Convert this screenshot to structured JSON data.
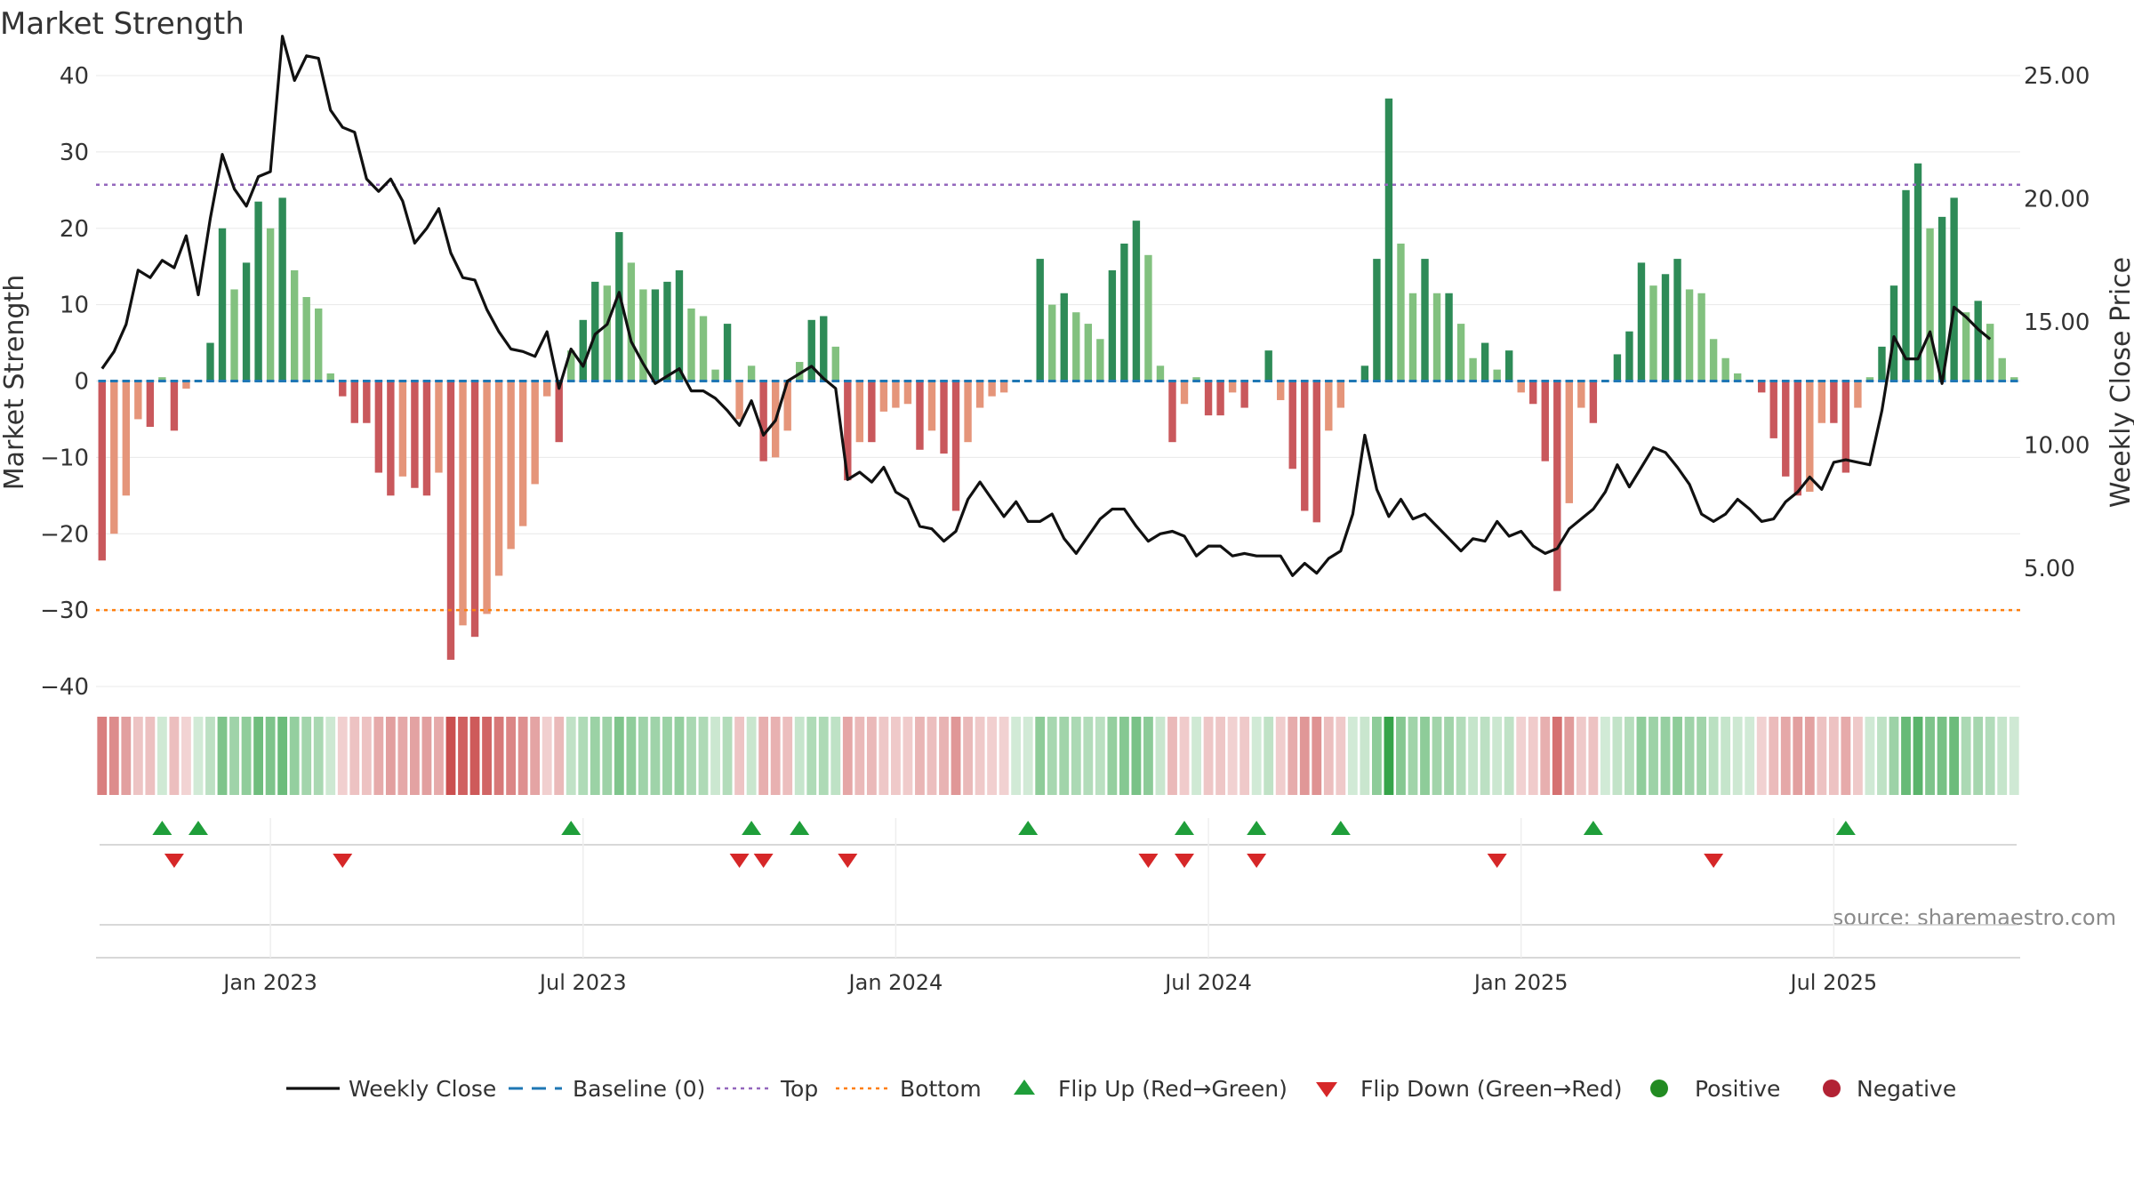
{
  "colors": {
    "green_strong": "#2e8b57",
    "green_light": "#82c17f",
    "red_strong": "#c9585c",
    "red_light": "#e5957a",
    "close_line": "#111111",
    "baseline": "#1f77b4",
    "top_line": "#9467bd",
    "bottom_line": "#ff7f0e",
    "flip_up": "#1f9e3a",
    "flip_down": "#d62728",
    "positive": "#228b22",
    "negative": "#b22234",
    "grid": "#e8e8e8"
  },
  "chart_data": {
    "type": "bar",
    "title": "Market Strength",
    "ylabel": "Market Strength",
    "y2label": "Weekly Close Price",
    "ylim": [
      -40,
      40
    ],
    "y2lim": [
      0.2,
      25
    ],
    "yticks": [
      40,
      30,
      20,
      10,
      0,
      -10,
      -20,
      -30,
      -40
    ],
    "yticklabels": [
      "40",
      "30",
      "20",
      "10",
      "0",
      "−10",
      "−20",
      "−30",
      "−40"
    ],
    "y2ticks": [
      25,
      20,
      15,
      10,
      5
    ],
    "y2ticklabels": [
      "25.00",
      "20.00",
      "15.00",
      "10.00",
      "5.00"
    ],
    "top_level": 25.7,
    "bottom_level": -30,
    "grid": true,
    "legend_position": "bottom",
    "xticks": [
      "Jan 2023",
      "Jul 2023",
      "Jan 2024",
      "Jul 2024",
      "Jan 2025",
      "Jul 2025"
    ],
    "xtick_index": [
      14,
      40,
      66,
      92,
      118,
      144
    ],
    "source": "source: sharemaestro.com",
    "strength": [
      -23.5,
      -20,
      -15,
      -5,
      -6,
      0.5,
      -6.5,
      -1,
      0,
      5,
      20,
      12,
      15.5,
      23.5,
      20,
      24,
      14.5,
      11,
      9.5,
      1,
      -2,
      -5.5,
      -5.5,
      -12,
      -15,
      -12.5,
      -14,
      -15,
      -12,
      -36.5,
      -32,
      -33.5,
      -30.5,
      -25.5,
      -22,
      -19,
      -13.5,
      -2,
      -8,
      4,
      8,
      13,
      12.5,
      19.5,
      15.5,
      12,
      12,
      13,
      14.5,
      9.5,
      8.5,
      1.5,
      7.5,
      -5,
      2,
      -10.5,
      -10,
      -6.5,
      2.5,
      8,
      8.5,
      4.5,
      -13,
      -8,
      -8,
      -4,
      -3.5,
      -3,
      -9,
      -6.5,
      -9.5,
      -17,
      -8,
      -3.5,
      -2,
      -1.5,
      0,
      0,
      16,
      10,
      11.5,
      9,
      7.5,
      5.5,
      14.5,
      18,
      21,
      16.5,
      2,
      -8,
      -3,
      0.5,
      -4.5,
      -4.5,
      -1.5,
      -3.5,
      0,
      4,
      -2.5,
      -11.5,
      -17,
      -18.5,
      -6.5,
      -3.5,
      0,
      2,
      16,
      37,
      18,
      11.5,
      16,
      11.5,
      11.5,
      7.5,
      3,
      5,
      1.5,
      4,
      -1.5,
      -3,
      -10.5,
      -27.5,
      -16,
      -3.5,
      -5.5,
      0,
      3.5,
      6.5,
      15.5,
      12.5,
      14,
      16,
      12,
      11.5,
      5.5,
      3,
      1,
      0,
      -1.5,
      -7.5,
      -12.5,
      -15,
      -14.5,
      -5.5,
      -5.5,
      -12,
      -3.5,
      0.5,
      4.5,
      12.5,
      25,
      28.5,
      20,
      21.5,
      24,
      9,
      10.5,
      7.5,
      3,
      0.5
    ],
    "close": [
      13.1,
      13.8,
      14.9,
      17.1,
      16.8,
      17.5,
      17.2,
      18.5,
      16.1,
      19.2,
      21.8,
      20.4,
      19.7,
      20.9,
      21.1,
      26.6,
      24.8,
      25.8,
      25.7,
      23.6,
      22.9,
      22.7,
      20.8,
      20.3,
      20.8,
      19.9,
      18.2,
      18.8,
      19.6,
      17.8,
      16.8,
      16.7,
      15.5,
      14.6,
      13.9,
      13.8,
      13.6,
      14.6,
      12.3,
      13.9,
      13.2,
      14.5,
      14.9,
      16.2,
      14.2,
      13.3,
      12.5,
      12.8,
      13.1,
      12.2,
      12.2,
      11.9,
      11.4,
      10.8,
      11.8,
      10.4,
      11,
      12.6,
      12.9,
      13.2,
      12.7,
      12.3,
      8.6,
      8.9,
      8.5,
      9.1,
      8.1,
      7.8,
      6.7,
      6.6,
      6.1,
      6.5,
      7.8,
      8.5,
      7.8,
      7.1,
      7.7,
      6.9,
      6.9,
      7.2,
      6.2,
      5.6,
      6.3,
      7,
      7.4,
      7.4,
      6.7,
      6.1,
      6.4,
      6.5,
      6.3,
      5.5,
      5.9,
      5.9,
      5.5,
      5.6,
      5.5,
      5.5,
      5.5,
      4.7,
      5.2,
      4.8,
      5.4,
      5.7,
      7.2,
      10.4,
      8.2,
      7.1,
      7.8,
      7,
      7.2,
      6.7,
      6.2,
      5.7,
      6.2,
      6.1,
      6.9,
      6.3,
      6.5,
      5.9,
      5.6,
      5.8,
      6.6,
      7,
      7.4,
      8.1,
      9.2,
      8.3,
      9.1,
      9.9,
      9.7,
      9.1,
      8.4,
      7.2,
      6.9,
      7.2,
      7.8,
      7.4,
      6.9,
      7,
      7.7,
      8.1,
      8.7,
      8.2,
      9.3,
      9.4,
      9.3,
      9.2,
      11.4,
      14.4,
      13.5,
      13.5,
      14.6,
      12.5,
      15.6,
      15.2,
      14.7,
      14.3
    ],
    "flip_up_index": [
      5,
      8,
      39,
      54,
      58,
      77,
      90,
      96,
      103,
      124,
      145
    ],
    "flip_down_index": [
      6,
      20,
      53,
      55,
      62,
      87,
      90,
      96,
      116,
      134
    ],
    "series": [
      {
        "name": "Weekly Close",
        "style": "line"
      },
      {
        "name": "Baseline (0)",
        "style": "dash"
      },
      {
        "name": "Top",
        "style": "dot-purple"
      },
      {
        "name": "Bottom",
        "style": "dot-orange"
      },
      {
        "name": "Flip Up (Red→Green)",
        "style": "tri-up"
      },
      {
        "name": "Flip Down (Green→Red)",
        "style": "tri-down"
      },
      {
        "name": "Positive",
        "style": "dot-green"
      },
      {
        "name": "Negative",
        "style": "dot-red"
      }
    ]
  }
}
